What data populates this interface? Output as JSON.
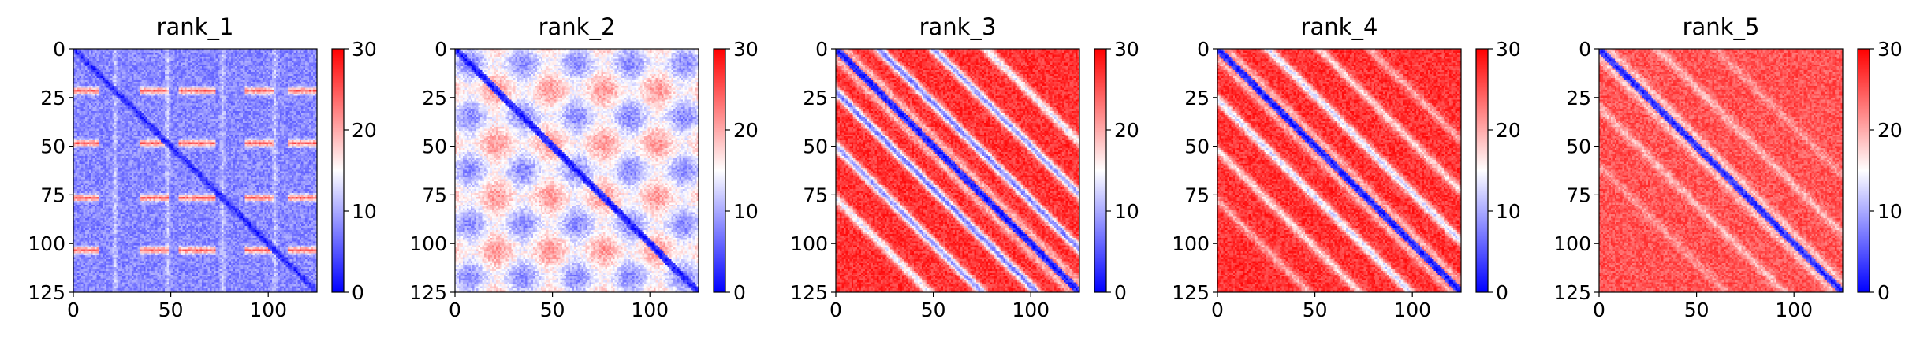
{
  "figure": {
    "colorbar_gradient": [
      "#0000ff",
      "#ffffff",
      "#ff0000"
    ]
  },
  "chart_data": [
    {
      "type": "heatmap",
      "title": "rank_1",
      "matrix_size": 125,
      "xlim": [
        0,
        125
      ],
      "ylim": [
        125,
        0
      ],
      "x_ticks": [
        0,
        50,
        100
      ],
      "y_ticks": [
        0,
        25,
        50,
        75,
        100,
        125
      ],
      "colorbar": {
        "range": [
          0,
          30
        ],
        "ticks": [
          0,
          10,
          20,
          30
        ]
      },
      "pattern": {
        "diagonal_value": 2,
        "background_value": 8,
        "band_period": 27.5,
        "band_rows": [
          21,
          48,
          76,
          103
        ],
        "band_value": 24,
        "band_segments": [
          [
            0,
            12
          ],
          [
            34,
            48
          ],
          [
            54,
            72
          ],
          [
            88,
            102
          ],
          [
            110,
            125
          ]
        ],
        "ridge_value": 15
      }
    },
    {
      "type": "heatmap",
      "title": "rank_2",
      "matrix_size": 125,
      "xlim": [
        0,
        125
      ],
      "ylim": [
        125,
        0
      ],
      "x_ticks": [
        0,
        50,
        100
      ],
      "y_ticks": [
        0,
        25,
        50,
        75,
        100,
        125
      ],
      "colorbar": {
        "range": [
          0,
          30
        ],
        "ticks": [
          0,
          10,
          20,
          30
        ]
      },
      "pattern": {
        "diagonal_value": 1,
        "background_value": 15,
        "block_period": 27.5,
        "block_low": 8,
        "block_high": 21
      }
    },
    {
      "type": "heatmap",
      "title": "rank_3",
      "matrix_size": 125,
      "xlim": [
        0,
        125
      ],
      "ylim": [
        125,
        0
      ],
      "x_ticks": [
        0,
        50,
        100
      ],
      "y_ticks": [
        0,
        25,
        50,
        75,
        100,
        125
      ],
      "colorbar": {
        "range": [
          0,
          30
        ],
        "ticks": [
          0,
          10,
          20,
          30
        ]
      },
      "pattern": {
        "diagonal_value": 1,
        "background_value": 27,
        "offdiag_bands": [
          {
            "offset": 22,
            "value": 7
          },
          {
            "offset": 50,
            "value": 9
          },
          {
            "offset": 77,
            "value": 14
          }
        ]
      }
    },
    {
      "type": "heatmap",
      "title": "rank_4",
      "matrix_size": 125,
      "xlim": [
        0,
        125
      ],
      "ylim": [
        125,
        0
      ],
      "x_ticks": [
        0,
        50,
        100
      ],
      "y_ticks": [
        0,
        25,
        50,
        75,
        100,
        125
      ],
      "colorbar": {
        "range": [
          0,
          30
        ],
        "ticks": [
          0,
          10,
          20,
          30
        ]
      },
      "pattern": {
        "diagonal_value": 1,
        "background_value": 27,
        "offdiag_bands": [
          {
            "offset": 26,
            "value": 13
          },
          {
            "offset": 52,
            "value": 17
          },
          {
            "offset": 78,
            "value": 20
          }
        ]
      }
    },
    {
      "type": "heatmap",
      "title": "rank_5",
      "matrix_size": 125,
      "xlim": [
        0,
        125
      ],
      "ylim": [
        125,
        0
      ],
      "x_ticks": [
        0,
        50,
        100
      ],
      "y_ticks": [
        0,
        25,
        50,
        75,
        100,
        125
      ],
      "colorbar": {
        "range": [
          0,
          30
        ],
        "ticks": [
          0,
          10,
          20,
          30
        ]
      },
      "pattern": {
        "diagonal_value": 2,
        "background_value": 25,
        "offdiag_bands": [
          {
            "offset": 30,
            "value": 19
          },
          {
            "offset": 60,
            "value": 21
          }
        ]
      }
    }
  ]
}
